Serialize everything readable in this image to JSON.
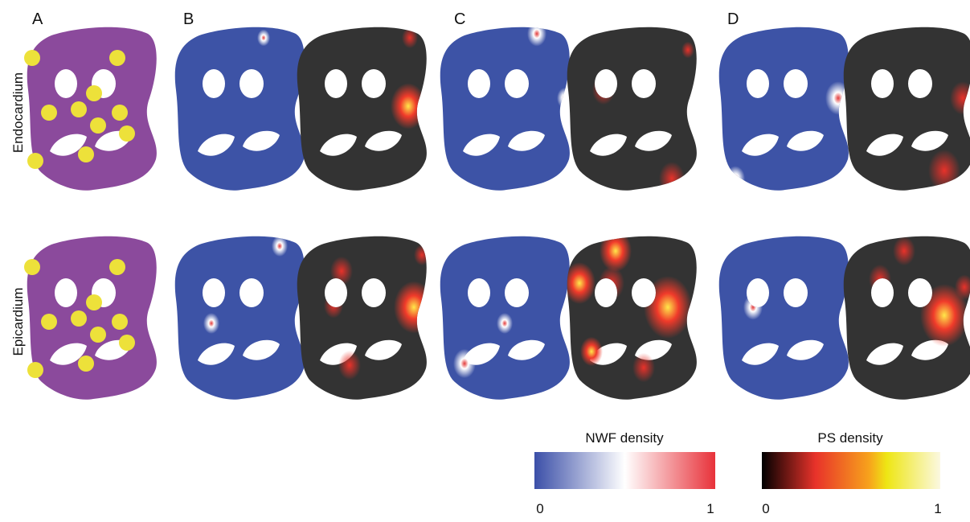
{
  "panels": [
    "A",
    "B",
    "C",
    "D"
  ],
  "rows": [
    "Endocardium",
    "Epicardium"
  ],
  "colorbars": [
    {
      "title": "NWF density",
      "min": 0,
      "max": 1
    },
    {
      "title": "PS density",
      "min": 0,
      "max": 1
    }
  ]
}
